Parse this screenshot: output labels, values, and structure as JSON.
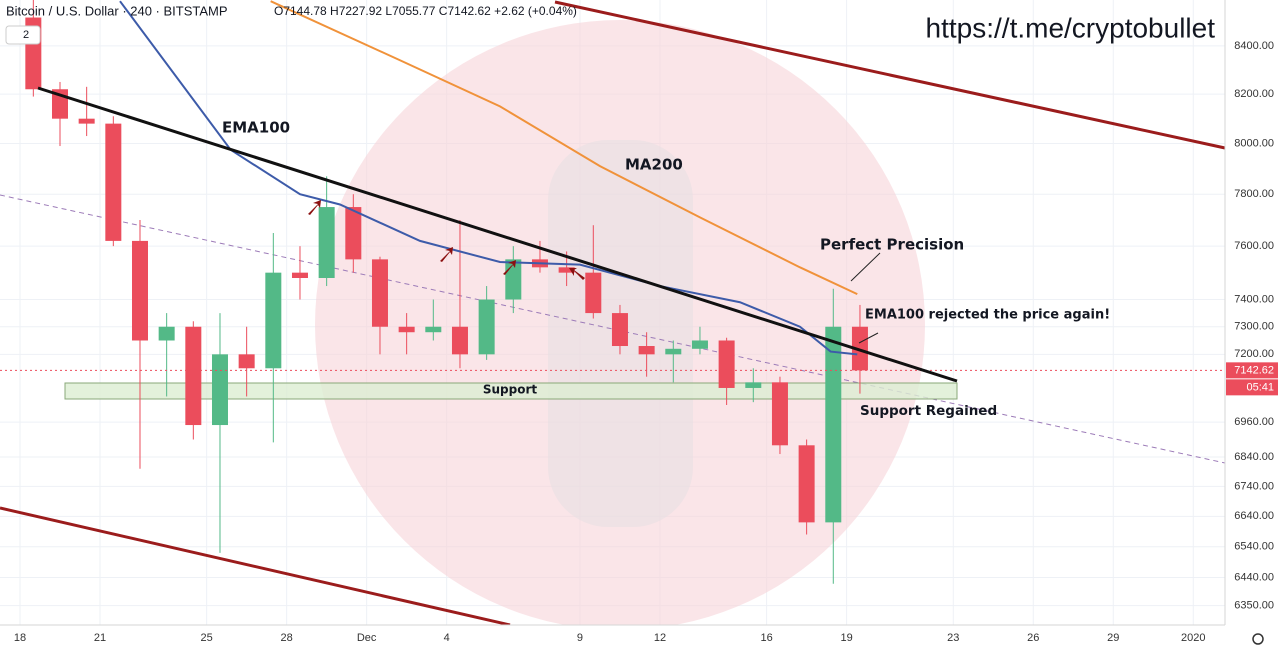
{
  "chart_data": {
    "type": "candlestick",
    "title": "Bitcoin / U.S. Dollar · 240 · BITSTAMP",
    "ohlc_legend": "O7144.78 H7227.92 L7055.77 C7142.62 +2.62 (+0.04%)",
    "interval_badge": "2",
    "watermark": "https://t.me/cryptobullet",
    "annotations": [
      "EMA100",
      "MA200",
      "Perfect Precision",
      "EMA100 rejected the price again!",
      "Support",
      "Support Regained"
    ],
    "last_price": 7142.62,
    "countdown": "05:41",
    "log_scale": true,
    "grid": true,
    "up_color": "#53b987",
    "down_color": "#eb4d5c",
    "xlim": [
      -0.75,
      45.19
    ],
    "ylim": [
      6289,
      8595
    ],
    "xticks": [
      {
        "value": 0,
        "label": "18"
      },
      {
        "value": 3,
        "label": "21"
      },
      {
        "value": 7,
        "label": "25"
      },
      {
        "value": 10,
        "label": "28"
      },
      {
        "value": 13,
        "label": "Dec"
      },
      {
        "value": 16,
        "label": "4"
      },
      {
        "value": 21,
        "label": "9"
      },
      {
        "value": 24,
        "label": "12"
      },
      {
        "value": 28,
        "label": "16"
      },
      {
        "value": 31,
        "label": "19"
      },
      {
        "value": 35,
        "label": "23"
      },
      {
        "value": 38,
        "label": "26"
      },
      {
        "value": 41,
        "label": "29"
      },
      {
        "value": 44,
        "label": "2020"
      }
    ],
    "yticks": [
      {
        "value": 8400,
        "label": "8400.00"
      },
      {
        "value": 8200,
        "label": "8200.00"
      },
      {
        "value": 8000,
        "label": "8000.00"
      },
      {
        "value": 7800,
        "label": "7800.00"
      },
      {
        "value": 7600,
        "label": "7600.00"
      },
      {
        "value": 7400,
        "label": "7400.00"
      },
      {
        "value": 7300,
        "label": "7300.00"
      },
      {
        "value": 7200,
        "label": "7200.00"
      },
      {
        "value": 6960,
        "label": "6960.00"
      },
      {
        "value": 6840,
        "label": "6840.00"
      },
      {
        "value": 6740,
        "label": "6740.00"
      },
      {
        "value": 6640,
        "label": "6640.00"
      },
      {
        "value": 6540,
        "label": "6540.00"
      },
      {
        "value": 6440,
        "label": "6440.00"
      },
      {
        "value": 6350,
        "label": "6350.00"
      }
    ],
    "x": [
      0,
      1,
      2,
      3,
      4,
      5,
      6,
      7,
      8,
      9,
      10,
      11,
      12,
      13,
      14,
      15,
      16,
      17,
      18,
      19,
      20,
      21,
      22,
      23,
      24,
      25,
      26,
      27,
      28,
      29,
      30,
      31
    ],
    "open": [
      8520,
      8220,
      8100,
      8080,
      7620,
      7250,
      7300,
      6950,
      7200,
      7150,
      7500,
      7480,
      7750,
      7550,
      7300,
      7280,
      7300,
      7200,
      7400,
      7550,
      7520,
      7500,
      7350,
      7230,
      7200,
      7220,
      7250,
      7080,
      7100,
      6880,
      6620,
      7300
    ],
    "high": [
      8600,
      8250,
      8230,
      8110,
      7700,
      7350,
      7320,
      7350,
      7300,
      7650,
      7600,
      7870,
      7800,
      7560,
      7350,
      7400,
      7700,
      7450,
      7600,
      7620,
      7580,
      7680,
      7380,
      7280,
      7250,
      7300,
      7260,
      7150,
      7120,
      6900,
      7440,
      7380
    ],
    "low": [
      8190,
      7990,
      8030,
      7600,
      6800,
      7050,
      6900,
      6520,
      7050,
      6890,
      7400,
      7450,
      7500,
      7200,
      7200,
      7250,
      7150,
      7180,
      7350,
      7500,
      7450,
      7330,
      7200,
      7120,
      7100,
      7200,
      7020,
      7030,
      6850,
      6580,
      6420,
      7060
    ],
    "close": [
      8220,
      8100,
      8080,
      7620,
      7250,
      7300,
      6950,
      7200,
      7150,
      7500,
      7480,
      7750,
      7550,
      7300,
      7280,
      7300,
      7200,
      7400,
      7550,
      7520,
      7500,
      7350,
      7230,
      7200,
      7220,
      7250,
      7080,
      7100,
      6880,
      6620,
      7300,
      7142.62
    ],
    "series": [
      {
        "name": "EMA100",
        "color": "#3d5ba9",
        "x": [
          3.75,
          7.9,
          10.5,
          12,
          15,
          18,
          21,
          24,
          27,
          29.25,
          30.4,
          31.4
        ],
        "values": [
          8590,
          7975,
          7800,
          7760,
          7620,
          7540,
          7530,
          7450,
          7390,
          7300,
          7210,
          7200
        ]
      },
      {
        "name": "MA200",
        "color": "#f0923a",
        "x": [
          9.4,
          14.25,
          18,
          21.75,
          25.5,
          29.25,
          31.4
        ],
        "values": [
          8590,
          8340,
          8150,
          7910,
          7710,
          7520,
          7420
        ]
      }
    ]
  }
}
